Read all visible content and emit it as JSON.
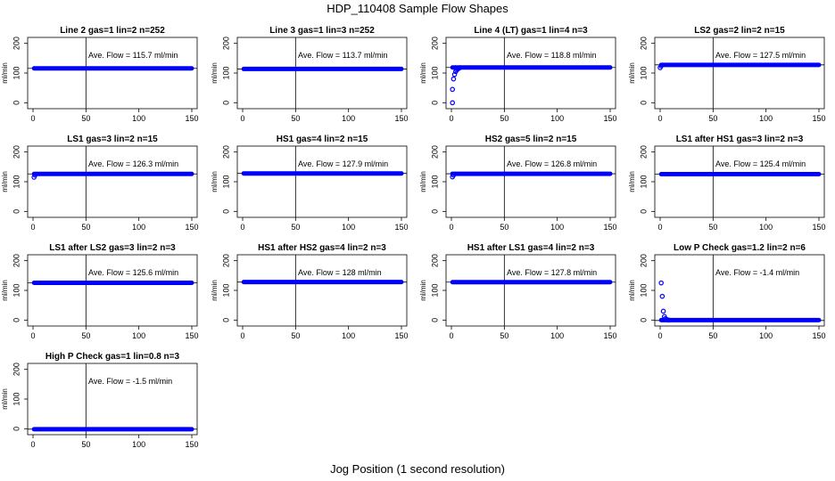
{
  "page": {
    "title": "HDP_110408  Sample Flow Shapes",
    "xlabel": "Jog Position (1 second resolution)"
  },
  "chart_data": [
    {
      "type": "scatter",
      "title": "Line 2 gas=1 lin=2 n=252",
      "annotation": "Ave. Flow =  115.7  ml/min",
      "ylabel": "ml/min",
      "xlim": [
        0,
        150
      ],
      "ylim": [
        -20,
        220
      ],
      "xticks": [
        0,
        50,
        100,
        150
      ],
      "yticks": [
        0,
        100,
        200
      ],
      "vline": 50,
      "hline": 115.7,
      "series": [
        {
          "color": "#0000ff",
          "shape": "line",
          "flat": 115.7
        }
      ]
    },
    {
      "type": "scatter",
      "title": "Line 3 gas=1 lin=3 n=252",
      "annotation": "Ave. Flow =  113.7  ml/min",
      "ylabel": "ml/min",
      "xlim": [
        0,
        150
      ],
      "ylim": [
        -20,
        220
      ],
      "xticks": [
        0,
        50,
        100,
        150
      ],
      "yticks": [
        0,
        100,
        200
      ],
      "vline": 50,
      "hline": 113.7,
      "series": [
        {
          "color": "#0000ff",
          "shape": "line",
          "flat": 113.7
        }
      ]
    },
    {
      "type": "scatter",
      "title": "Line 4 (LT) gas=1 lin=4 n=3",
      "annotation": "Ave. Flow =  118.8  ml/min",
      "ylabel": "ml/min",
      "xlim": [
        0,
        150
      ],
      "ylim": [
        -20,
        220
      ],
      "xticks": [
        0,
        50,
        100,
        150
      ],
      "yticks": [
        0,
        100,
        200
      ],
      "vline": 50,
      "hline": 118.8,
      "series": [
        {
          "color": "#0000ff",
          "shape": "points",
          "x": [
            1,
            1,
            2,
            3,
            4,
            5,
            6,
            7,
            8
          ],
          "y": [
            0,
            45,
            80,
            95,
            105,
            110,
            113,
            116,
            118
          ]
        },
        {
          "color": "#0000ff",
          "shape": "line",
          "flat": 118.8
        }
      ]
    },
    {
      "type": "scatter",
      "title": "LS2 gas=2 lin=2 n=15",
      "annotation": "Ave. Flow =  127.5  ml/min",
      "ylabel": "ml/min",
      "xlim": [
        0,
        150
      ],
      "ylim": [
        -20,
        220
      ],
      "xticks": [
        0,
        50,
        100,
        150
      ],
      "yticks": [
        0,
        100,
        200
      ],
      "vline": 50,
      "hline": 127.5,
      "series": [
        {
          "color": "#0000ff",
          "shape": "points",
          "x": [
            0,
            1
          ],
          "y": [
            118,
            124
          ]
        },
        {
          "color": "#0000ff",
          "shape": "line",
          "flat": 127.5
        }
      ]
    },
    {
      "type": "scatter",
      "title": "LS1 gas=3 lin=2 n=15",
      "annotation": "Ave. Flow =  126.3  ml/min",
      "ylabel": "ml/min",
      "xlim": [
        0,
        150
      ],
      "ylim": [
        -20,
        220
      ],
      "xticks": [
        0,
        50,
        100,
        150
      ],
      "yticks": [
        0,
        100,
        200
      ],
      "vline": 50,
      "hline": 126.3,
      "series": [
        {
          "color": "#0000ff",
          "shape": "points",
          "x": [
            1,
            2
          ],
          "y": [
            115,
            122
          ]
        },
        {
          "color": "#0000ff",
          "shape": "line",
          "flat": 126.3
        }
      ]
    },
    {
      "type": "scatter",
      "title": "HS1 gas=4 lin=2 n=15",
      "annotation": "Ave. Flow =  127.9  ml/min",
      "ylabel": "ml/min",
      "xlim": [
        0,
        150
      ],
      "ylim": [
        -20,
        220
      ],
      "xticks": [
        0,
        50,
        100,
        150
      ],
      "yticks": [
        0,
        100,
        200
      ],
      "vline": 50,
      "hline": 127.9,
      "series": [
        {
          "color": "#0000ff",
          "shape": "line",
          "flat": 127.9
        }
      ]
    },
    {
      "type": "scatter",
      "title": "HS2 gas=5 lin=2 n=15",
      "annotation": "Ave. Flow =  126.8  ml/min",
      "ylabel": "ml/min",
      "xlim": [
        0,
        150
      ],
      "ylim": [
        -20,
        220
      ],
      "xticks": [
        0,
        50,
        100,
        150
      ],
      "yticks": [
        0,
        100,
        200
      ],
      "vline": 50,
      "hline": 126.8,
      "series": [
        {
          "color": "#0000ff",
          "shape": "points",
          "x": [
            1,
            2
          ],
          "y": [
            116,
            122
          ]
        },
        {
          "color": "#0000ff",
          "shape": "line",
          "flat": 126.8
        }
      ]
    },
    {
      "type": "scatter",
      "title": "LS1 after HS1 gas=3 lin=2 n=3",
      "annotation": "Ave. Flow =  125.4  ml/min",
      "ylabel": "ml/min",
      "xlim": [
        0,
        150
      ],
      "ylim": [
        -20,
        220
      ],
      "xticks": [
        0,
        50,
        100,
        150
      ],
      "yticks": [
        0,
        100,
        200
      ],
      "vline": 50,
      "hline": 125.4,
      "series": [
        {
          "color": "#0000ff",
          "shape": "line",
          "flat": 125.4
        }
      ]
    },
    {
      "type": "scatter",
      "title": "LS1 after LS2 gas=3 lin=2 n=3",
      "annotation": "Ave. Flow =  125.6  ml/min",
      "ylabel": "ml/min",
      "xlim": [
        0,
        150
      ],
      "ylim": [
        -20,
        220
      ],
      "xticks": [
        0,
        50,
        100,
        150
      ],
      "yticks": [
        0,
        100,
        200
      ],
      "vline": 50,
      "hline": 125.6,
      "series": [
        {
          "color": "#0000ff",
          "shape": "line",
          "flat": 125.6
        }
      ]
    },
    {
      "type": "scatter",
      "title": "HS1 after HS2 gas=4 lin=2 n=3",
      "annotation": "Ave. Flow =  128  ml/min",
      "ylabel": "ml/min",
      "xlim": [
        0,
        150
      ],
      "ylim": [
        -20,
        220
      ],
      "xticks": [
        0,
        50,
        100,
        150
      ],
      "yticks": [
        0,
        100,
        200
      ],
      "vline": 50,
      "hline": 128,
      "series": [
        {
          "color": "#0000ff",
          "shape": "line",
          "flat": 128
        }
      ]
    },
    {
      "type": "scatter",
      "title": "HS1 after LS1 gas=4 lin=2 n=3",
      "annotation": "Ave. Flow =  127.8  ml/min",
      "ylabel": "ml/min",
      "xlim": [
        0,
        150
      ],
      "ylim": [
        -20,
        220
      ],
      "xticks": [
        0,
        50,
        100,
        150
      ],
      "yticks": [
        0,
        100,
        200
      ],
      "vline": 50,
      "hline": 127.8,
      "series": [
        {
          "color": "#0000ff",
          "shape": "line",
          "flat": 127.8
        }
      ]
    },
    {
      "type": "scatter",
      "title": "Low P Check gas=1.2 lin=2 n=6",
      "annotation": "Ave. Flow =  -1.4  ml/min",
      "ylabel": "ml/min",
      "xlim": [
        0,
        150
      ],
      "ylim": [
        -20,
        220
      ],
      "xticks": [
        0,
        50,
        100,
        150
      ],
      "yticks": [
        0,
        100,
        200
      ],
      "vline": 50,
      "hline": -1.4,
      "series": [
        {
          "color": "#0000ff",
          "shape": "points",
          "x": [
            1,
            2,
            3,
            4,
            5,
            6,
            7,
            8
          ],
          "y": [
            125,
            80,
            30,
            12,
            5,
            2,
            1,
            0
          ]
        },
        {
          "color": "#0000ff",
          "shape": "line",
          "flat": 0
        }
      ]
    },
    {
      "type": "scatter",
      "title": "High P Check gas=1 lin=0.8 n=3",
      "annotation": "Ave. Flow =  -1.5  ml/min",
      "ylabel": "ml/min",
      "xlim": [
        0,
        150
      ],
      "ylim": [
        -20,
        220
      ],
      "xticks": [
        0,
        50,
        100,
        150
      ],
      "yticks": [
        0,
        100,
        200
      ],
      "vline": 50,
      "hline": -1.5,
      "series": [
        {
          "color": "#0000ff",
          "shape": "line",
          "flat": -1.5
        }
      ]
    }
  ]
}
